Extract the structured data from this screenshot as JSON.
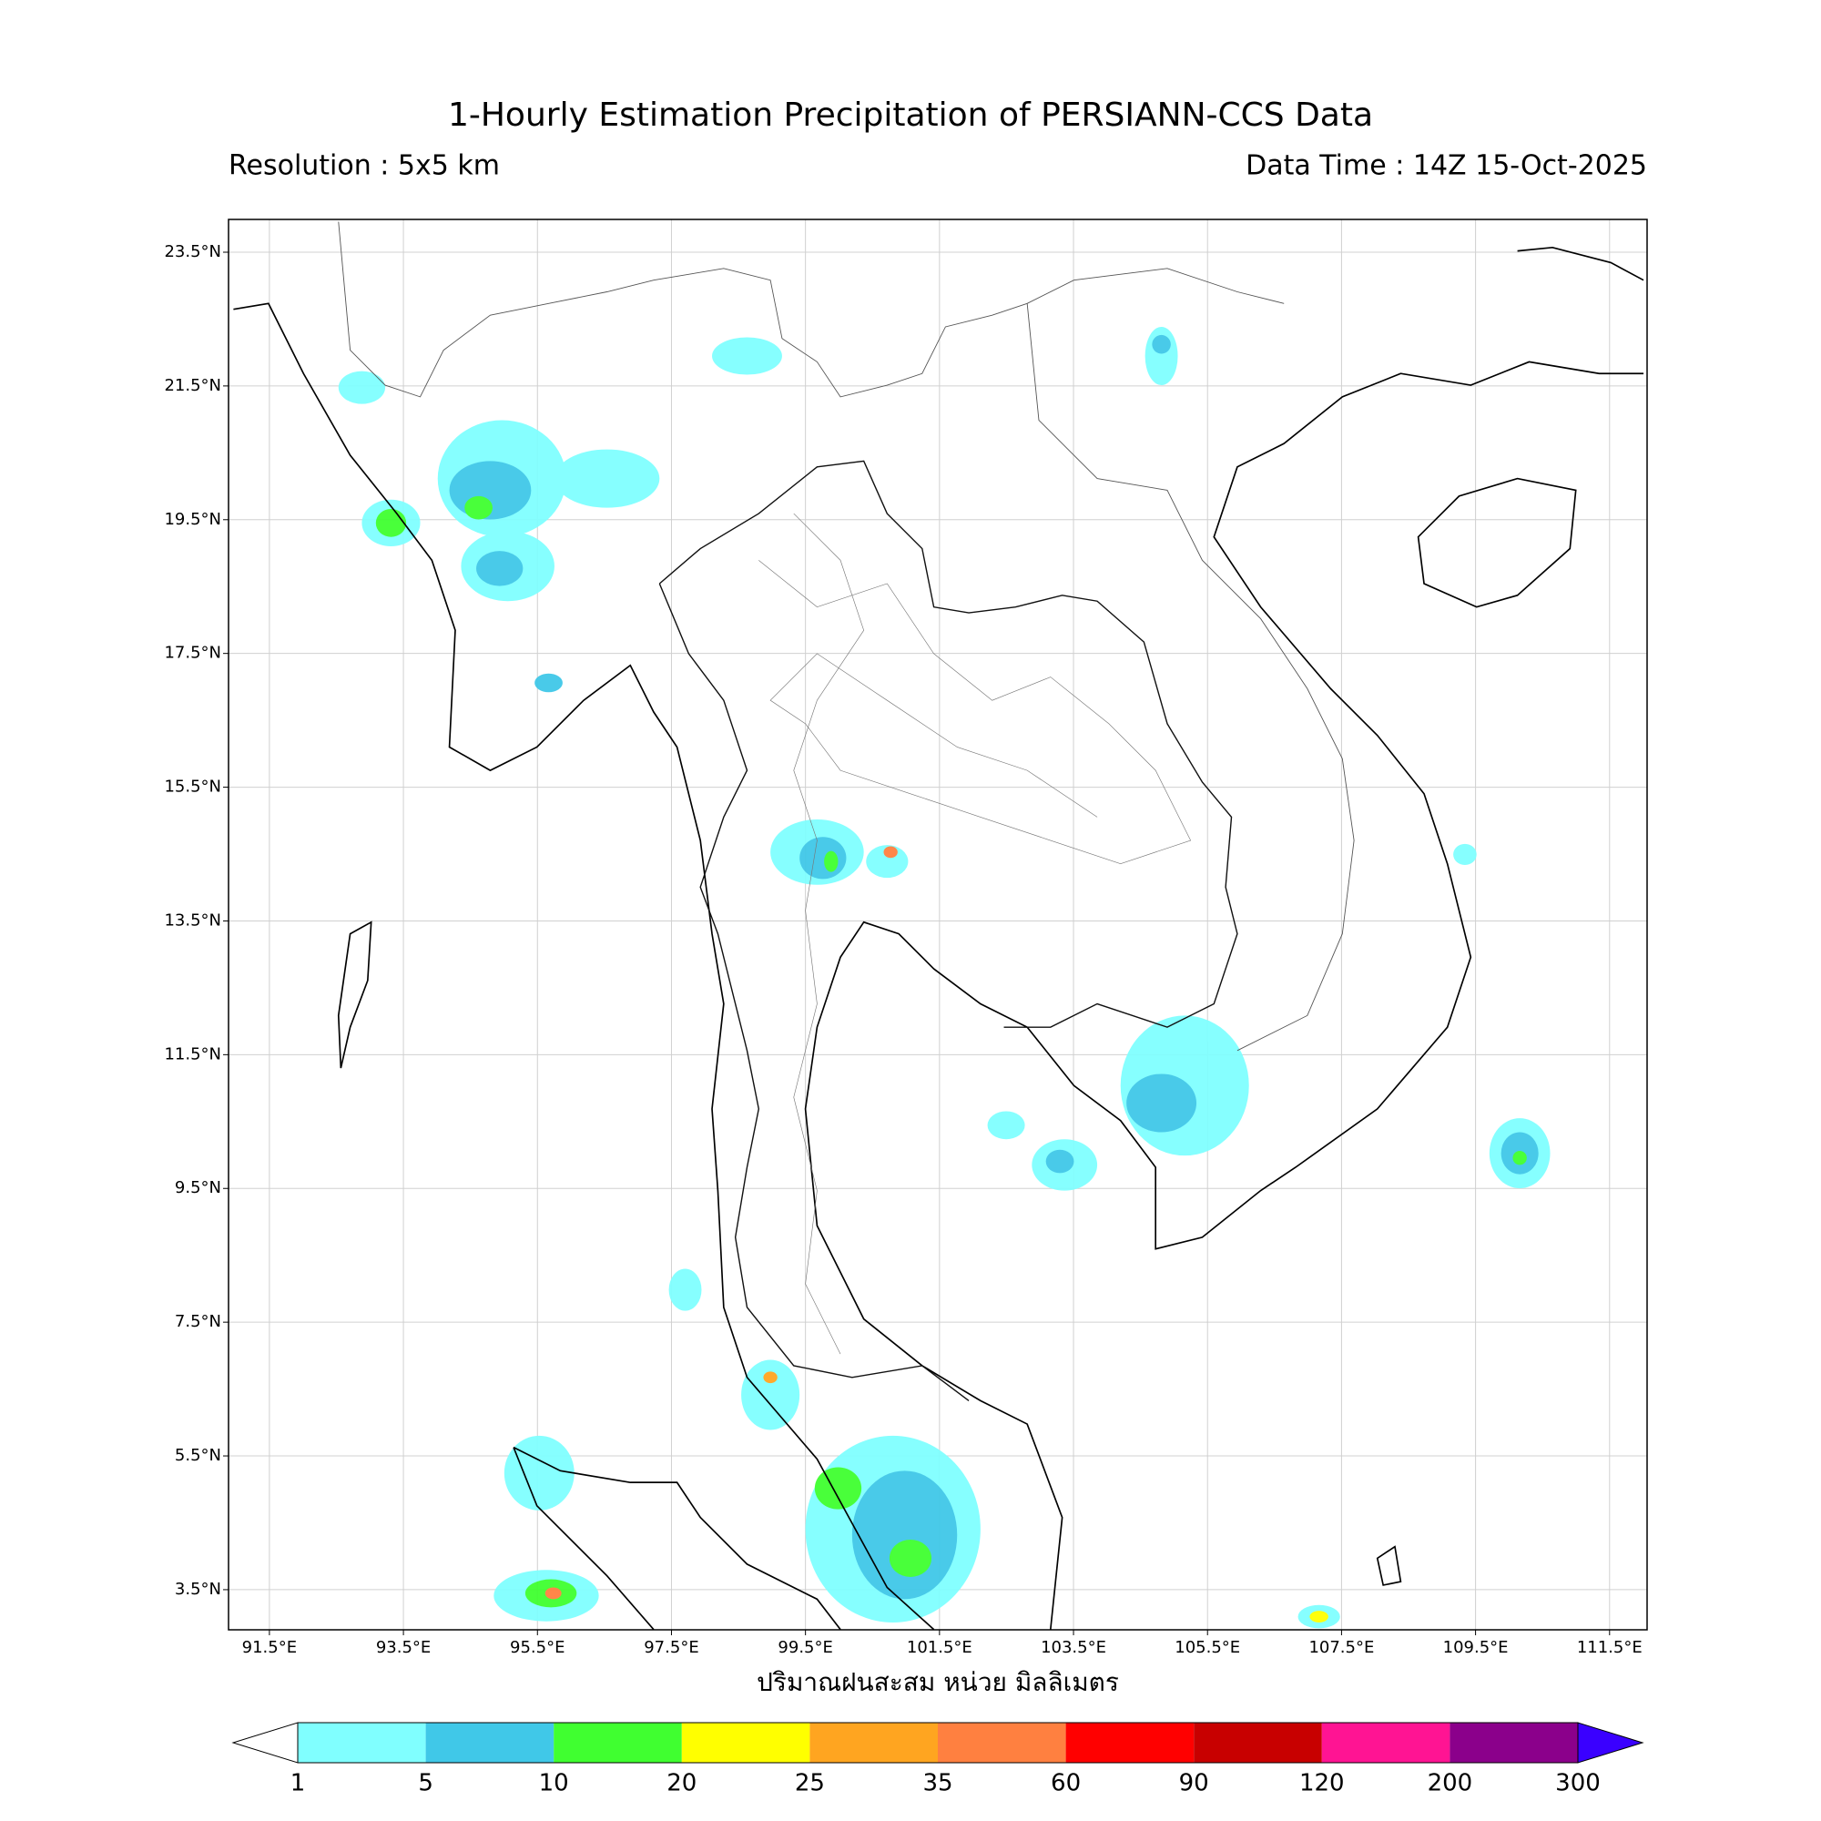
{
  "title": "1-Hourly Estimation Precipitation of PERSIANN-CCS Data",
  "resolution": "Resolution : 5x5 km",
  "data_time": "Data Time : 14Z 15-Oct-2025",
  "map": {
    "lonlim": [
      90.89,
      112.06
    ],
    "latlim": [
      2.9,
      23.99
    ],
    "lon_ticks": [
      {
        "value": 91.5,
        "label": "91.5°E"
      },
      {
        "value": 93.5,
        "label": "93.5°E"
      },
      {
        "value": 95.5,
        "label": "95.5°E"
      },
      {
        "value": 97.5,
        "label": "97.5°E"
      },
      {
        "value": 99.5,
        "label": "99.5°E"
      },
      {
        "value": 101.5,
        "label": "101.5°E"
      },
      {
        "value": 103.5,
        "label": "103.5°E"
      },
      {
        "value": 105.5,
        "label": "105.5°E"
      },
      {
        "value": 107.5,
        "label": "107.5°E"
      },
      {
        "value": 109.5,
        "label": "109.5°E"
      },
      {
        "value": 111.5,
        "label": "111.5°E"
      }
    ],
    "lat_ticks": [
      {
        "value": 23.5,
        "label": "23.5°N"
      },
      {
        "value": 21.5,
        "label": "21.5°N"
      },
      {
        "value": 19.5,
        "label": "19.5°N"
      },
      {
        "value": 17.5,
        "label": "17.5°N"
      },
      {
        "value": 15.5,
        "label": "15.5°N"
      },
      {
        "value": 13.5,
        "label": "13.5°N"
      },
      {
        "value": 11.5,
        "label": "11.5°N"
      },
      {
        "value": 9.5,
        "label": "9.5°N"
      },
      {
        "value": 7.5,
        "label": "7.5°N"
      },
      {
        "value": 5.5,
        "label": "5.5°N"
      },
      {
        "value": 3.5,
        "label": "3.5°N"
      }
    ]
  },
  "colorbar": {
    "label": "ปริมาณฝนสะสม หน่วย มิลลิเมตร",
    "levels": [
      1,
      5,
      10,
      20,
      25,
      35,
      60,
      90,
      120,
      200,
      300
    ],
    "colors": [
      "#80ffff",
      "#40c8e8",
      "#40ff30",
      "#ffff00",
      "#ffa520",
      "#ff8040",
      "#ff0000",
      "#c80000",
      "#ff1493",
      "#8b008b"
    ],
    "under_color": "#ffffff",
    "over_color": "#3a00ff"
  }
}
